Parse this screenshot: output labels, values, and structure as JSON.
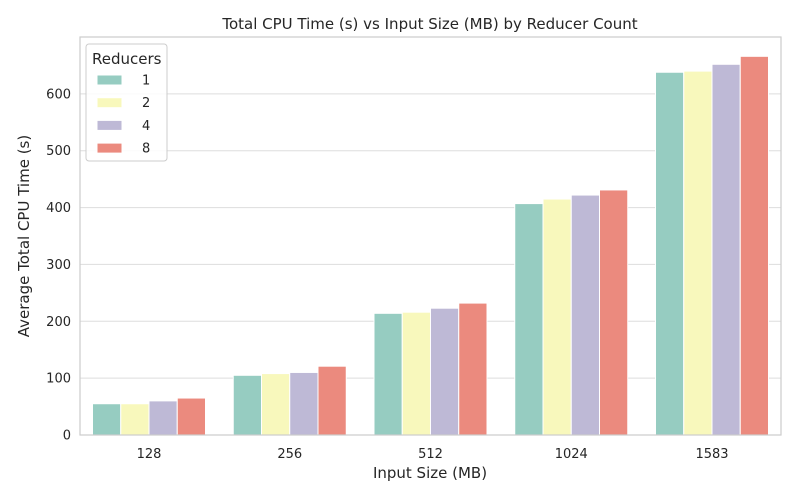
{
  "chart_data": {
    "type": "bar",
    "title": "Total CPU Time (s) vs Input Size (MB) by Reducer Count",
    "xlabel": "Input Size (MB)",
    "ylabel": "Average Total CPU Time (s)",
    "categories": [
      "128",
      "256",
      "512",
      "1024",
      "1583"
    ],
    "ylim": [
      0,
      700
    ],
    "yticks": [
      0,
      100,
      200,
      300,
      400,
      500,
      600
    ],
    "grid": true,
    "legend": {
      "title": "Reducers",
      "placement": "top-left"
    },
    "series": [
      {
        "name": "1",
        "color": "#96ccc1",
        "values": [
          55,
          105,
          214,
          407,
          638
        ]
      },
      {
        "name": "2",
        "color": "#f8f8bc",
        "values": [
          55,
          108,
          216,
          415,
          640
        ]
      },
      {
        "name": "4",
        "color": "#beb9d6",
        "values": [
          60,
          110,
          223,
          422,
          652
        ]
      },
      {
        "name": "8",
        "color": "#eb8a7e",
        "values": [
          65,
          121,
          232,
          431,
          666
        ]
      }
    ]
  }
}
